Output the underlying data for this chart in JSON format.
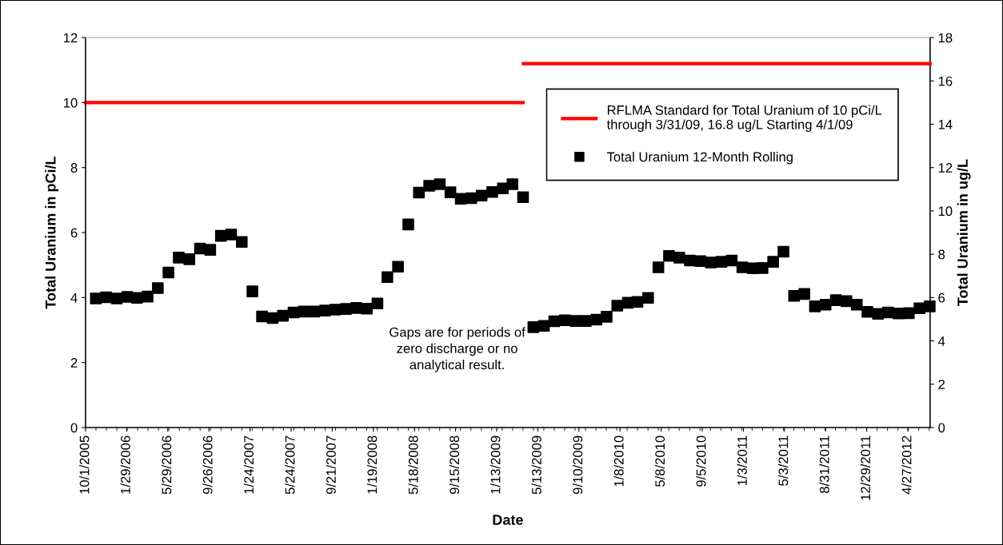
{
  "chart_data": {
    "type": "scatter",
    "xlabel": "Date",
    "ylabel": "Total Uranium in pCi/L",
    "y2label": "Total Uranium in ug/L",
    "xlim": [
      "2005-10-01",
      "2012-07-01"
    ],
    "xticks": [
      {
        "value": "2005-10-01",
        "label": "10/1/2005"
      },
      {
        "value": "2006-01-29",
        "label": "1/29/2006"
      },
      {
        "value": "2006-05-29",
        "label": "5/29/2006"
      },
      {
        "value": "2006-09-26",
        "label": "9/26/2006"
      },
      {
        "value": "2007-01-24",
        "label": "1/24/2007"
      },
      {
        "value": "2007-05-24",
        "label": "5/24/2007"
      },
      {
        "value": "2007-09-21",
        "label": "9/21/2007"
      },
      {
        "value": "2008-01-19",
        "label": "1/19/2008"
      },
      {
        "value": "2008-05-18",
        "label": "5/18/2008"
      },
      {
        "value": "2008-09-15",
        "label": "9/15/2008"
      },
      {
        "value": "2009-01-13",
        "label": "1/13/2009"
      },
      {
        "value": "2009-05-13",
        "label": "5/13/2009"
      },
      {
        "value": "2009-09-10",
        "label": "9/10/2009"
      },
      {
        "value": "2010-01-08",
        "label": "1/8/2010"
      },
      {
        "value": "2010-05-08",
        "label": "5/8/2010"
      },
      {
        "value": "2010-09-05",
        "label": "9/5/2010"
      },
      {
        "value": "2011-01-03",
        "label": "1/3/2011"
      },
      {
        "value": "2011-05-03",
        "label": "5/3/2011"
      },
      {
        "value": "2011-08-31",
        "label": "8/31/2011"
      },
      {
        "value": "2011-12-29",
        "label": "12/29/2011"
      },
      {
        "value": "2012-04-27",
        "label": "4/27/2012"
      }
    ],
    "ylim": [
      0,
      12
    ],
    "yticks": [
      0,
      2,
      4,
      6,
      8,
      10,
      12
    ],
    "y2lim": [
      0,
      18
    ],
    "y2ticks": [
      0,
      2,
      4,
      6,
      8,
      10,
      12,
      14,
      16,
      18
    ],
    "grid": false,
    "legend": "top right",
    "annotations": [
      "Gaps are for periods of\nzero discharge or no\nanalytical result."
    ],
    "series": [
      {
        "type": "line",
        "name": "RFLMA Standard for Total Uranium of 10 pCi/L\nthrough 3/31/09, 16.8 ug/L Starting 4/1/09",
        "color": "#ff0000",
        "line_style": "solid",
        "marker": "none",
        "x": [
          "2005-10-01",
          "2009-03-31"
        ],
        "values": [
          10,
          10
        ]
      },
      {
        "type": "line",
        "axis": "y2",
        "color": "#ff0000",
        "line_style": "solid",
        "marker": "none",
        "x": [
          "2009-04-01",
          "2012-07-01"
        ],
        "values": [
          16.8,
          16.8
        ]
      },
      {
        "name": "Total Uranium 12-Month Rolling",
        "color": "#000000",
        "marker": "square",
        "x": [
          "2005-10-31",
          "2005-11-30",
          "2005-12-31",
          "2006-01-31",
          "2006-02-28",
          "2006-03-31",
          "2006-04-30",
          "2006-05-31",
          "2006-06-30",
          "2006-07-31",
          "2006-08-31",
          "2006-09-30",
          "2006-10-31",
          "2006-11-30",
          "2006-12-31",
          "2007-01-31",
          "2007-02-28",
          "2007-03-31",
          "2007-04-30",
          "2007-05-31",
          "2007-06-30",
          "2007-07-31",
          "2007-08-31",
          "2007-09-30",
          "2007-10-31",
          "2007-11-30",
          "2007-12-31",
          "2008-01-31",
          "2008-02-29",
          "2008-03-31",
          "2008-04-30",
          "2008-05-31",
          "2008-06-30",
          "2008-07-31",
          "2008-08-31",
          "2008-09-30",
          "2008-10-31",
          "2008-11-30",
          "2008-12-31",
          "2009-01-31",
          "2009-02-28",
          "2009-03-31",
          "2009-04-30",
          "2009-05-31",
          "2009-06-30",
          "2009-07-31",
          "2009-08-31",
          "2009-09-30",
          "2009-10-31",
          "2009-11-30",
          "2009-12-31",
          "2010-01-31",
          "2010-02-28",
          "2010-03-31",
          "2010-04-30",
          "2010-05-31",
          "2010-06-30",
          "2010-07-31",
          "2010-08-31",
          "2010-09-30",
          "2010-10-31",
          "2010-11-30",
          "2010-12-31",
          "2011-01-31",
          "2011-02-28",
          "2011-03-31",
          "2011-04-30",
          "2011-05-31",
          "2011-06-30",
          "2011-07-31",
          "2011-08-31",
          "2011-09-30",
          "2011-10-31",
          "2011-11-30",
          "2011-12-31",
          "2012-01-31",
          "2012-02-29",
          "2012-03-31",
          "2012-04-30",
          "2012-05-31",
          "2012-06-30"
        ],
        "values": [
          3.97,
          4.01,
          3.97,
          4.02,
          3.99,
          4.03,
          4.29,
          4.77,
          5.23,
          5.18,
          5.51,
          5.47,
          5.9,
          5.94,
          5.71,
          4.19,
          3.42,
          3.37,
          3.44,
          3.54,
          3.57,
          3.57,
          3.6,
          3.63,
          3.65,
          3.68,
          3.66,
          3.82,
          4.63,
          4.95,
          6.25,
          7.23,
          7.44,
          7.49,
          7.24,
          7.04,
          7.06,
          7.14,
          7.25,
          7.36,
          7.49,
          7.09,
          3.09,
          3.13,
          3.27,
          3.3,
          3.28,
          3.28,
          3.32,
          3.41,
          3.75,
          3.84,
          3.87,
          3.99,
          4.93,
          5.28,
          5.23,
          5.14,
          5.12,
          5.08,
          5.1,
          5.14,
          4.93,
          4.9,
          4.91,
          5.1,
          5.41,
          4.05,
          4.11,
          3.73,
          3.78,
          3.92,
          3.89,
          3.78,
          3.56,
          3.5,
          3.54,
          3.51,
          3.52,
          3.67,
          3.73
        ]
      }
    ]
  }
}
